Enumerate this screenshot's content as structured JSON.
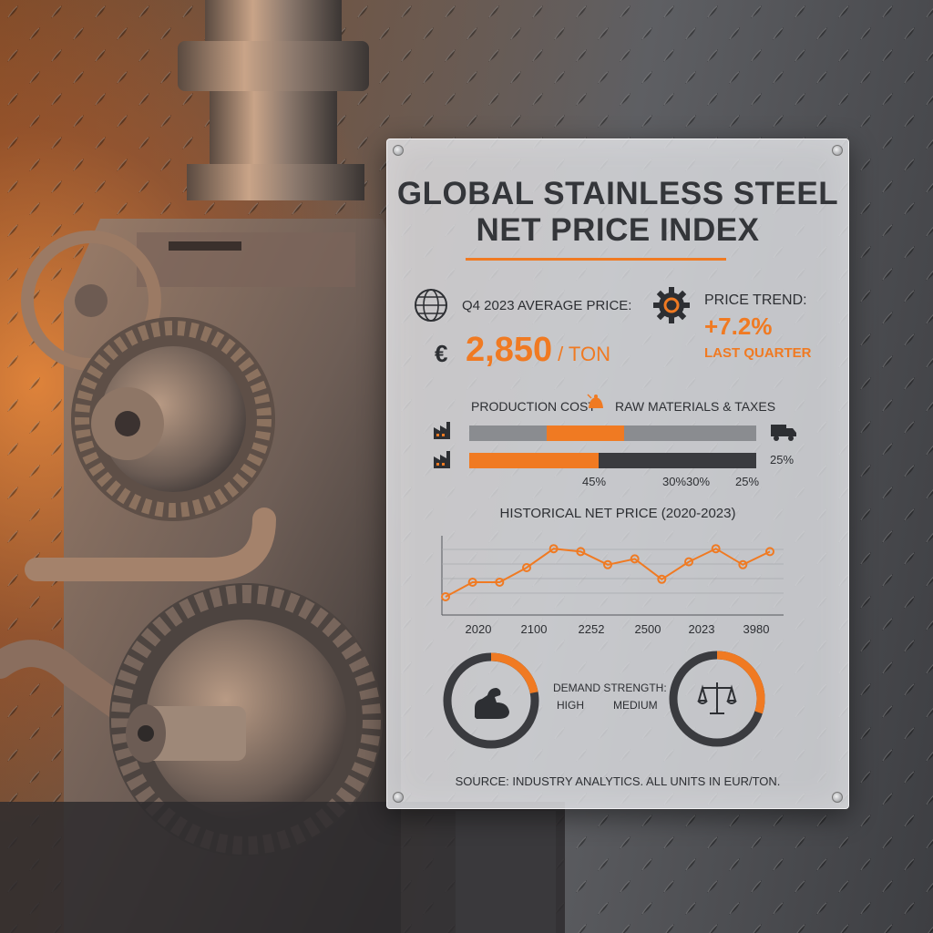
{
  "panel": {
    "title_line1": "GLOBAL STAINLESS STEEL",
    "title_line2": "NET PRICE INDEX",
    "avg_price_label": "Q4 2023 AVERAGE PRICE:",
    "currency_symbol": "€",
    "avg_price_value": "2,850",
    "avg_price_unit": "/ TON",
    "trend_label": "PRICE TREND:",
    "trend_value": "+7.2%",
    "trend_period": "LAST QUARTER",
    "cost_label_left": "PRODUCTION COST",
    "cost_label_right": "RAW MATERIALS & TAXES",
    "bar_side_value": "25%",
    "bar_percents": [
      "45%",
      "30%",
      "30%",
      "25%"
    ],
    "bars": [
      {
        "segments": [
          {
            "fraction": 0.27,
            "color": "#8a8c90"
          },
          {
            "fraction": 0.27,
            "color": "#f07a22"
          },
          {
            "fraction": 0.46,
            "color": "#8a8c90"
          }
        ]
      },
      {
        "segments": [
          {
            "fraction": 0.45,
            "color": "#f07a22"
          },
          {
            "fraction": 0.55,
            "color": "#3a3b3f"
          }
        ]
      }
    ],
    "chart_title": "HISTORICAL NET PRICE (2020-2023)",
    "demand_label": "DEMAND STRENGTH:",
    "demand_high": "HIGH",
    "demand_medium": "MEDIUM",
    "source": "SOURCE: INDUSTRY ANALYTICS. ALL UNITS IN EUR/TON.",
    "icons": {
      "price": "globe-icon",
      "trend": "gear-icon",
      "cost": "bell-icon",
      "factory": "factory-icon",
      "truck": "truck-icon",
      "strength": "flexed-arm-icon",
      "balance": "scales-icon"
    },
    "accent_color": "#f07a22"
  },
  "chart_data": {
    "type": "line",
    "title": "HISTORICAL NET PRICE (2020-2023)",
    "x_tick_labels": [
      "2020",
      "2100",
      "2252",
      "2500",
      "2023",
      "3980"
    ],
    "series": [
      {
        "values": [
          1.0,
          2.0,
          2.0,
          3.0,
          4.3,
          4.1,
          3.2,
          3.6,
          2.2,
          3.4,
          4.3,
          3.2,
          4.1
        ]
      }
    ],
    "ylim": [
      0,
      5
    ],
    "grid": true,
    "color": "#f07a22"
  },
  "gauges": [
    {
      "name": "demand-gauge-high",
      "fraction": 0.22
    },
    {
      "name": "demand-gauge-medium",
      "fraction": 0.3
    }
  ]
}
